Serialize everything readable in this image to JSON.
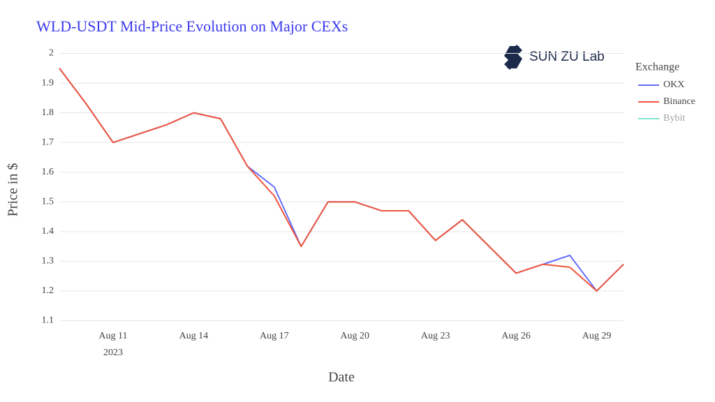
{
  "chart_data": {
    "type": "line",
    "title": "WLD-USDT Mid-Price Evolution on Major CEXs",
    "logo": "SUN ZU Lab",
    "x_label": "Date",
    "y_label": "Price in $",
    "legend_title": "Exchange",
    "legend_position": "right",
    "grid": true,
    "x": [
      "2023-08-09",
      "2023-08-10",
      "2023-08-11",
      "2023-08-12",
      "2023-08-13",
      "2023-08-14",
      "2023-08-15",
      "2023-08-16",
      "2023-08-17",
      "2023-08-18",
      "2023-08-19",
      "2023-08-20",
      "2023-08-21",
      "2023-08-22",
      "2023-08-23",
      "2023-08-24",
      "2023-08-25",
      "2023-08-26",
      "2023-08-27",
      "2023-08-28",
      "2023-08-29",
      "2023-08-30"
    ],
    "xlim": [
      "2023-08-09",
      "2023-08-30"
    ],
    "xticks": [
      {
        "value": "2023-08-11",
        "label": "Aug 11\n2023"
      },
      {
        "value": "2023-08-14",
        "label": "Aug 14"
      },
      {
        "value": "2023-08-17",
        "label": "Aug 17"
      },
      {
        "value": "2023-08-20",
        "label": "Aug 20"
      },
      {
        "value": "2023-08-23",
        "label": "Aug 23"
      },
      {
        "value": "2023-08-26",
        "label": "Aug 26"
      },
      {
        "value": "2023-08-29",
        "label": "Aug 29"
      }
    ],
    "ylim": [
      1.08,
      2.02
    ],
    "yticks": [
      1.1,
      1.2,
      1.3,
      1.4,
      1.5,
      1.6,
      1.7,
      1.8,
      1.9,
      2
    ],
    "series": [
      {
        "name": "OKX",
        "color": "#636efa",
        "visible": true,
        "values": [
          1.95,
          1.83,
          1.7,
          1.73,
          1.76,
          1.8,
          1.78,
          1.62,
          1.55,
          1.35,
          1.5,
          1.5,
          1.47,
          1.47,
          1.37,
          1.44,
          1.35,
          1.26,
          1.29,
          1.32,
          1.2,
          1.29
        ]
      },
      {
        "name": "Binance",
        "color": "#ef553b",
        "visible": true,
        "values": [
          1.95,
          1.83,
          1.7,
          1.73,
          1.76,
          1.8,
          1.78,
          1.62,
          1.52,
          1.35,
          1.5,
          1.5,
          1.47,
          1.47,
          1.37,
          1.44,
          1.35,
          1.26,
          1.29,
          1.28,
          1.2,
          1.29
        ]
      },
      {
        "name": "Bybit",
        "color": "#00cc96",
        "visible": false,
        "values": [
          null,
          null,
          null,
          null,
          null,
          null,
          null,
          null,
          null,
          null,
          null,
          null,
          null,
          null,
          null,
          null,
          null,
          null,
          null,
          null,
          null,
          null
        ]
      }
    ]
  }
}
